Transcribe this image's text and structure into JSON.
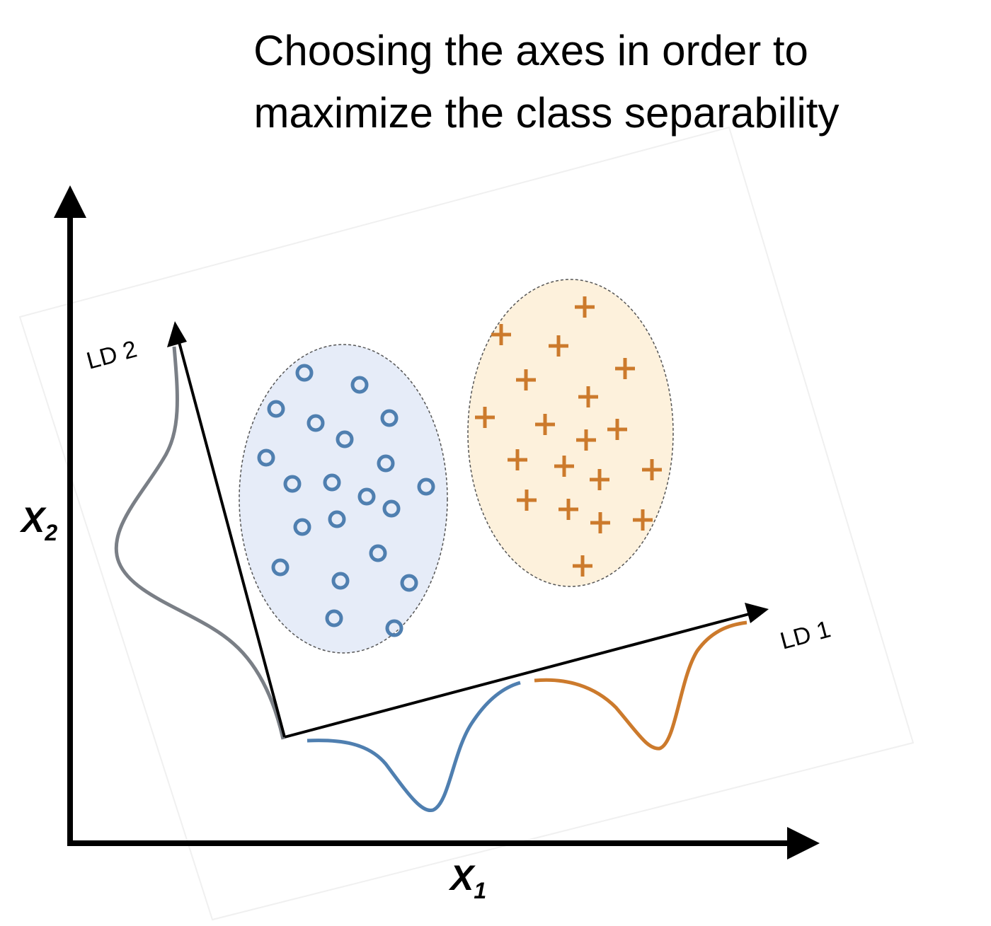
{
  "title": {
    "line1": "Choosing the axes in order to",
    "line2": "maximize the class separability"
  },
  "axes": {
    "x_main": "X",
    "x_sub": "1",
    "y_main": "X",
    "y_sub": "2"
  },
  "ld_axes": {
    "ld1": "LD 1",
    "ld2": "LD 2"
  },
  "classes": {
    "circles": {
      "marker": "circle-marker",
      "color": "#4f7fb0",
      "fill": "#e6ecf8"
    },
    "plus": {
      "marker": "plus-marker",
      "color": "#cc7a2c",
      "fill": "#fdf1dc"
    }
  },
  "colors": {
    "axis": "#000000",
    "ld2_curve": "#7a7f86",
    "ld1_blue_curve": "#4f7fb0",
    "ld1_orange_curve": "#cc7a2c",
    "ellipse_stroke": "#555555"
  }
}
